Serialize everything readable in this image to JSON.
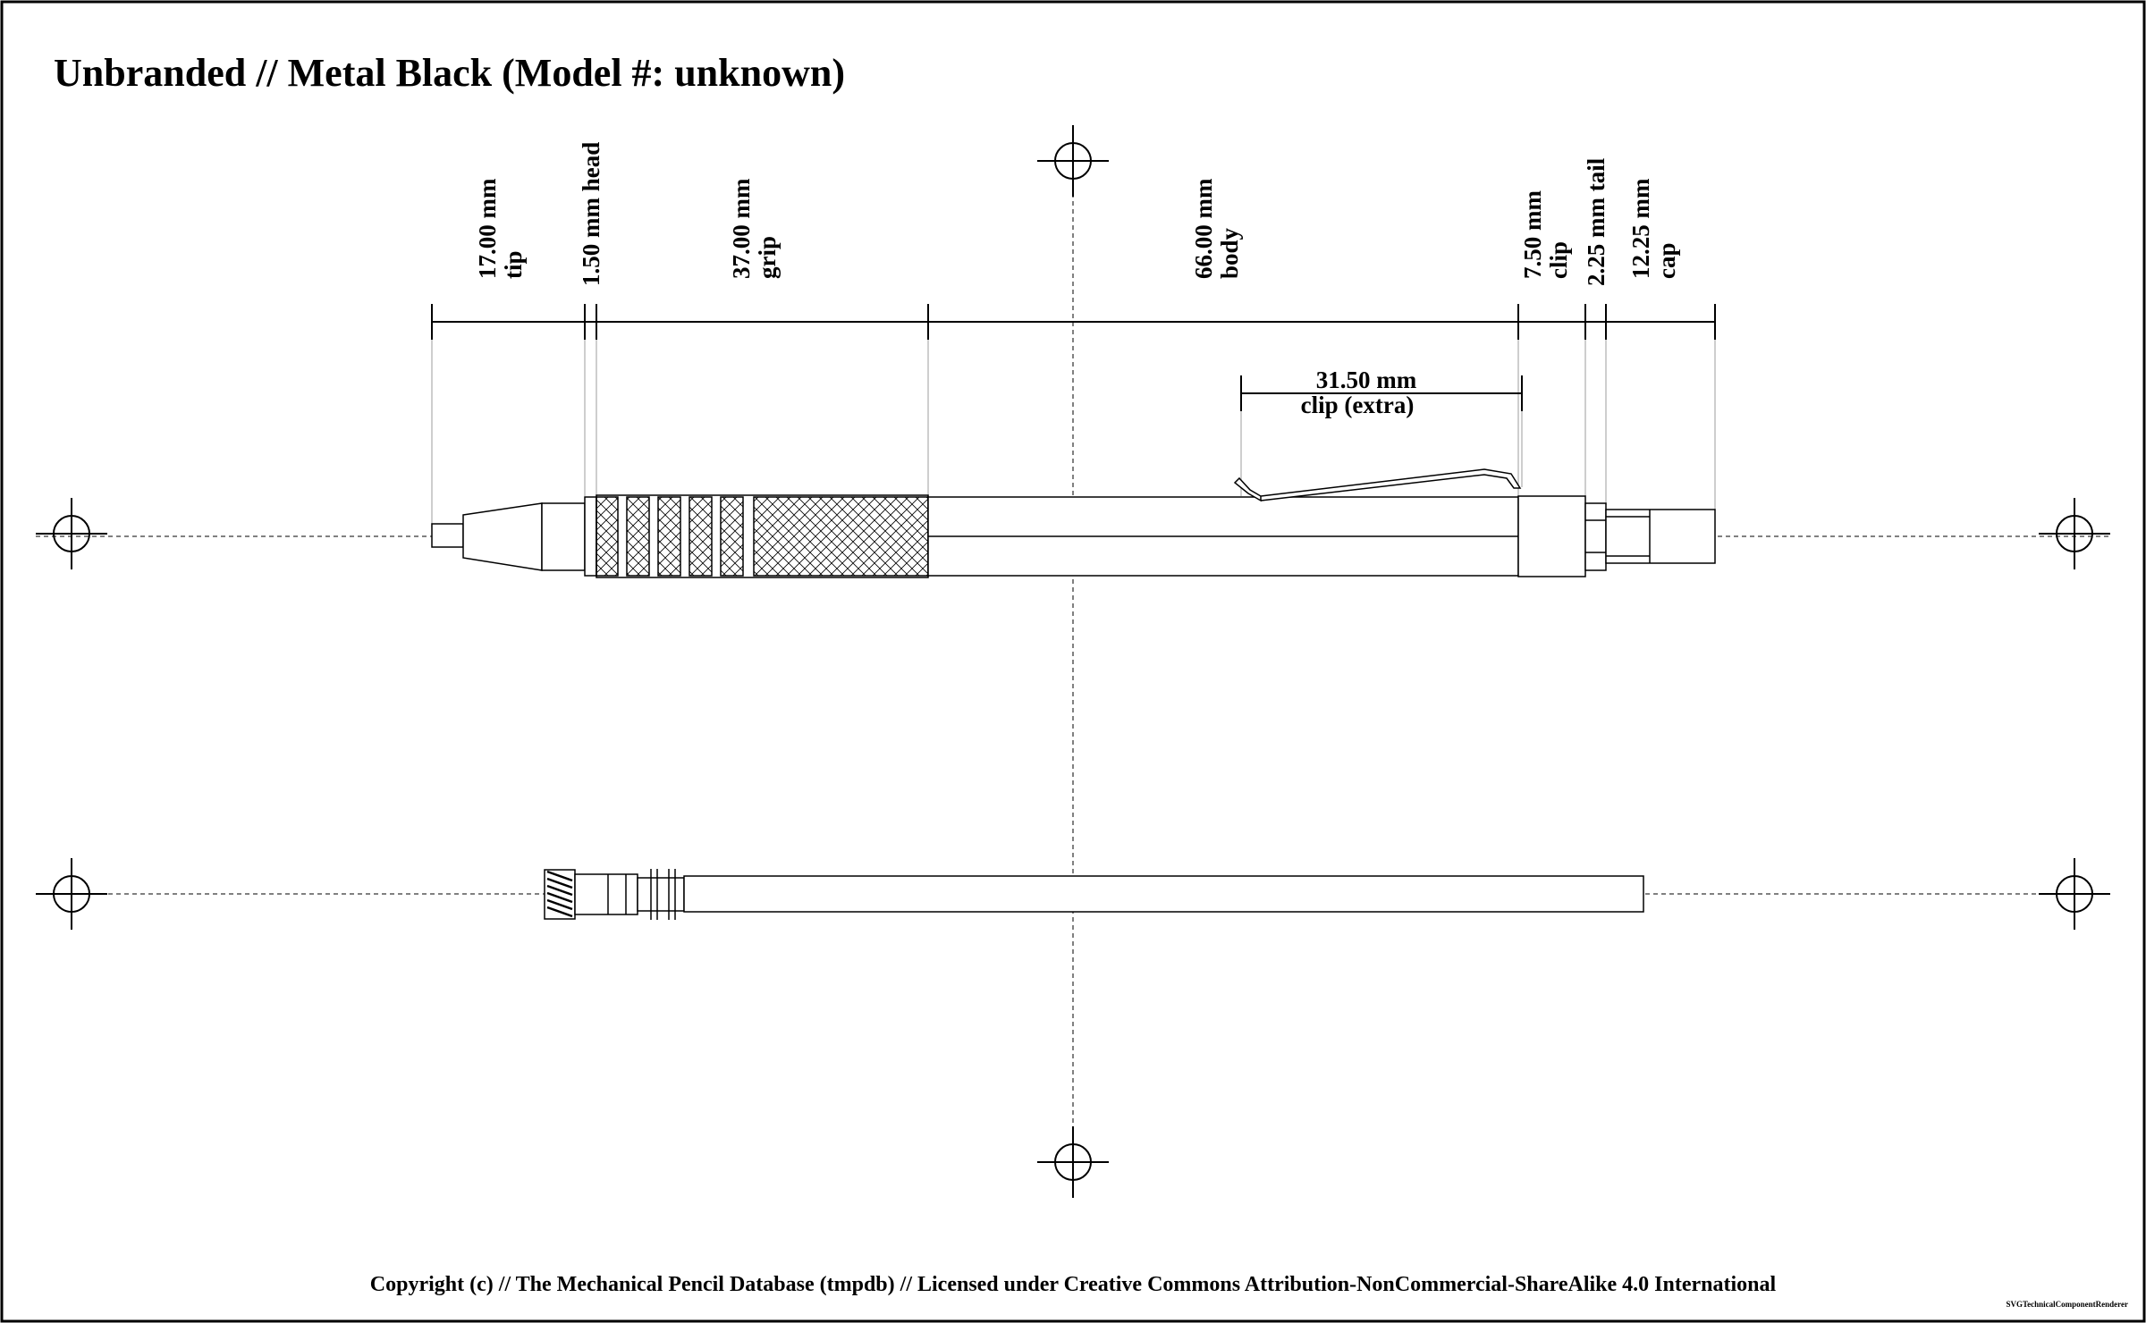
{
  "title": "Unbranded // Metal Black (Model #: unknown)",
  "footer": "Copyright (c) // The Mechanical Pencil Database (tmpdb) // Licensed under Creative Commons Attribution-NonCommercial-ShareAlike 4.0 International",
  "renderer": "SVGTechnicalComponentRenderer",
  "dimensions": [
    {
      "value": "17.00 mm",
      "label": "tip"
    },
    {
      "value": "1.50 mm head",
      "label": ""
    },
    {
      "value": "37.00 mm",
      "label": "grip"
    },
    {
      "value": "66.00 mm",
      "label": "body"
    },
    {
      "value": "7.50 mm",
      "label": "clip"
    },
    {
      "value": "2.25 mm tail",
      "label": ""
    },
    {
      "value": "12.25 mm",
      "label": "cap"
    }
  ],
  "extra_dimension": {
    "value": "31.50 mm",
    "label": "clip (extra)"
  }
}
